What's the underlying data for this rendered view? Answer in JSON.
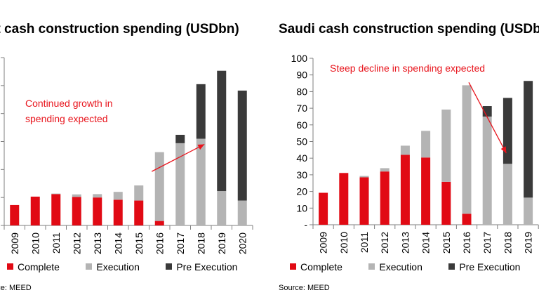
{
  "colors": {
    "complete": "#e10a14",
    "execution": "#b4b4b4",
    "pre_execution": "#3a3a3a",
    "annotation": "#e8141c"
  },
  "chart_data": [
    {
      "type": "bar",
      "stacked": true,
      "title": "Egypt cash construction spending (USDbn)",
      "source": "Source: MEED",
      "categories": [
        "2009",
        "2010",
        "2011",
        "2012",
        "2013",
        "2014",
        "2015",
        "2016",
        "2017",
        "2018",
        "2019",
        "2020"
      ],
      "series": [
        {
          "name": "Complete",
          "color_key": "complete",
          "values": [
            7.3,
            10.3,
            11.2,
            10.2,
            10.0,
            9.2,
            8.9,
            1.6,
            0,
            0,
            0,
            0
          ]
        },
        {
          "name": "Execution",
          "color_key": "execution",
          "values": [
            0,
            0,
            0.2,
            0.9,
            1.2,
            2.8,
            5.4,
            24.6,
            29.4,
            31.0,
            12.3,
            8.9
          ]
        },
        {
          "name": "Pre Execution",
          "color_key": "pre_execution",
          "values": [
            0,
            0,
            0,
            0,
            0,
            0,
            0,
            0,
            3.0,
            19.5,
            43.0,
            39.3
          ]
        }
      ],
      "ylim": [
        0,
        60
      ],
      "yticks": [
        0,
        10,
        20,
        30,
        40,
        50,
        60
      ],
      "show_ytick_labels": false,
      "grid": false,
      "legend_position": "bottom",
      "annotation": {
        "lines": [
          "Continued growth in",
          "spending expected"
        ],
        "arrow": {
          "from": {
            "x": "2016",
            "y": 19.3
          },
          "to": {
            "x": "2018",
            "y": 29.0
          }
        }
      }
    },
    {
      "type": "bar",
      "stacked": true,
      "title": "Saudi cash construction spending (USDbn)",
      "source": "Source: MEED",
      "categories": [
        "2009",
        "2010",
        "2011",
        "2012",
        "2013",
        "2014",
        "2015",
        "2016",
        "2017",
        "2018",
        "2019"
      ],
      "series": [
        {
          "name": "Complete",
          "color_key": "complete",
          "values": [
            19.2,
            31.1,
            28.5,
            32.0,
            42.0,
            40.4,
            25.8,
            6.6,
            0,
            0,
            0
          ]
        },
        {
          "name": "Execution",
          "color_key": "execution",
          "values": [
            0,
            0,
            0.8,
            2.0,
            5.5,
            16.0,
            43.4,
            77.2,
            65.0,
            36.6,
            16.3
          ]
        },
        {
          "name": "Pre Execution",
          "color_key": "pre_execution",
          "values": [
            0,
            0,
            0,
            0,
            0,
            0,
            0,
            0,
            6.3,
            39.6,
            70.1
          ]
        }
      ],
      "ylim": [
        0,
        100
      ],
      "yticks": [
        0,
        10,
        20,
        30,
        40,
        50,
        60,
        70,
        80,
        90,
        100
      ],
      "ytick_labels": [
        "-",
        "10",
        "20",
        "30",
        "40",
        "50",
        "60",
        "70",
        "80",
        "90",
        "100"
      ],
      "show_ytick_labels": true,
      "grid": false,
      "legend_position": "bottom",
      "annotation": {
        "lines": [
          "Steep decline in spending expected"
        ],
        "arrow": {
          "from": {
            "x": "2016",
            "y": 85.5
          },
          "to": {
            "x": "2018",
            "y": 43.0
          }
        }
      }
    }
  ]
}
